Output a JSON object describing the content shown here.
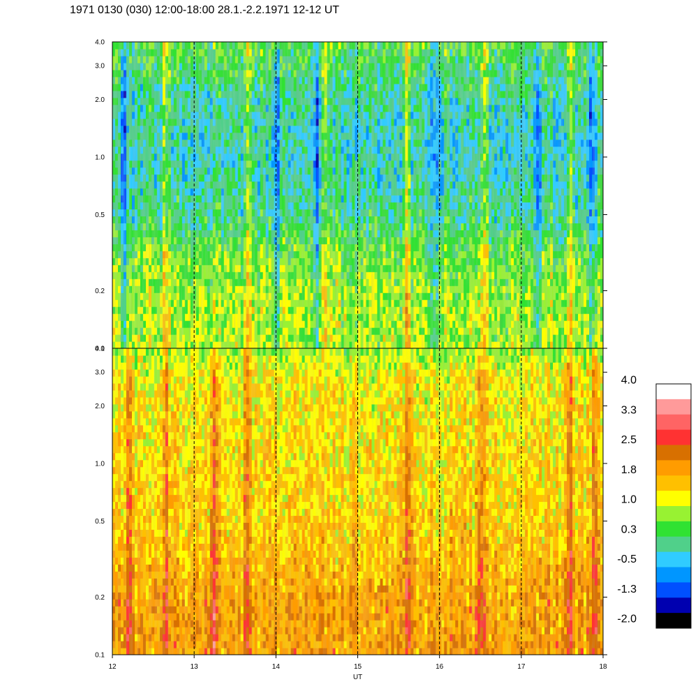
{
  "title": "1971 0130 (030) 12:00-18:00 28.1.-2.2.1971  12-12 UT",
  "chart_data": [
    {
      "type": "heatmap",
      "panel": "upper",
      "x_range": [
        12,
        18
      ],
      "y_range": [
        0.1,
        4.0
      ],
      "y_scale": "log",
      "x_ticks": [
        12,
        13,
        14,
        15,
        16,
        17,
        18
      ],
      "y_ticks": [
        {
          "value": 0.1,
          "label": "0.1"
        },
        {
          "value": 0.2,
          "label": "0.2"
        },
        {
          "value": 0.5,
          "label": "0.5"
        },
        {
          "value": 1.0,
          "label": "1.0"
        },
        {
          "value": 2.0,
          "label": "2.0"
        },
        {
          "value": 3.0,
          "label": "3.0"
        },
        {
          "value": 4.0,
          "label": "4.0"
        }
      ],
      "hour_gridlines": [
        13,
        14,
        15,
        16,
        17
      ],
      "xlabel": "",
      "ylabel": "",
      "profile": [
        {
          "y": 0.1,
          "level": 0.9
        },
        {
          "y": 0.2,
          "level": 0.8
        },
        {
          "y": 0.3,
          "level": 0.6
        },
        {
          "y": 0.5,
          "level": 0.1
        },
        {
          "y": 1.0,
          "level": -0.1
        },
        {
          "y": 2.0,
          "level": 0.0
        },
        {
          "y": 3.0,
          "level": 0.3
        },
        {
          "y": 4.0,
          "level": 0.5
        }
      ],
      "bright_streaks_ut": [
        12.65,
        13.65,
        14.6,
        15.6,
        16.55,
        17.6
      ],
      "dark_streaks_ut": [
        12.15,
        14.0,
        14.5,
        15.95,
        17.2,
        17.85
      ]
    },
    {
      "type": "heatmap",
      "panel": "lower",
      "x_range": [
        12,
        18
      ],
      "y_range": [
        0.1,
        4.0
      ],
      "y_scale": "log",
      "x_ticks": [
        12,
        13,
        14,
        15,
        16,
        17,
        18
      ],
      "y_ticks": [
        {
          "value": 0.1,
          "label": "0.1"
        },
        {
          "value": 0.2,
          "label": "0.2"
        },
        {
          "value": 0.5,
          "label": "0.5"
        },
        {
          "value": 1.0,
          "label": "1.0"
        },
        {
          "value": 2.0,
          "label": "2.0"
        },
        {
          "value": 3.0,
          "label": "3.0"
        },
        {
          "value": 4.0,
          "label": "4.0"
        }
      ],
      "hour_gridlines": [
        13,
        14,
        15,
        16,
        17
      ],
      "xlabel": "UT",
      "ylabel": "",
      "profile": [
        {
          "y": 0.1,
          "level": 1.9
        },
        {
          "y": 0.2,
          "level": 1.9
        },
        {
          "y": 0.3,
          "level": 1.7
        },
        {
          "y": 0.5,
          "level": 1.5
        },
        {
          "y": 1.0,
          "level": 1.4
        },
        {
          "y": 2.0,
          "level": 1.3
        },
        {
          "y": 3.0,
          "level": 1.2
        },
        {
          "y": 4.0,
          "level": 0.8
        }
      ],
      "bright_streaks_ut": [
        12.2,
        12.65,
        13.25,
        13.65,
        15.6,
        16.5,
        17.6,
        17.9
      ],
      "dark_streaks_ut": []
    }
  ],
  "colorbar": {
    "labels": [
      "4.0",
      "3.3",
      "2.5",
      "1.8",
      "1.0",
      "0.3",
      "-0.5",
      "-1.3",
      "-2.0"
    ],
    "levels_min": -2.0,
    "levels_max": 4.0,
    "colors_top_to_bottom": [
      "#ffffff",
      "#ff9a9a",
      "#ff6464",
      "#ff3232",
      "#d87000",
      "#ff9c00",
      "#ffc000",
      "#ffff00",
      "#98f232",
      "#30e232",
      "#50d08a",
      "#30ccff",
      "#0096ff",
      "#0050ff",
      "#0000b0",
      "#000000"
    ]
  }
}
